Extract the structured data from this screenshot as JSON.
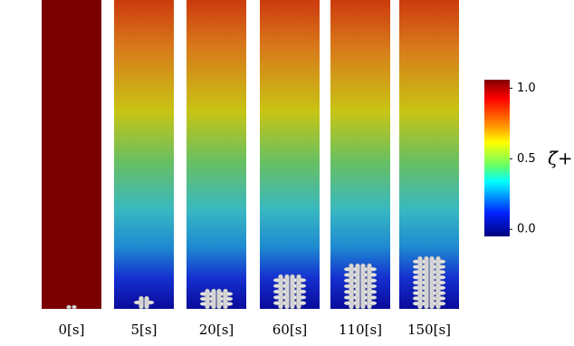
{
  "panels": [
    {
      "label": "0[s]"
    },
    {
      "label": "5[s]"
    },
    {
      "label": "20[s]"
    },
    {
      "label": "60[s]"
    },
    {
      "label": "110[s]"
    },
    {
      "label": "150[s]"
    }
  ],
  "colorbar": {
    "label": "ζ̃+",
    "lim": [
      -0.05,
      1.06
    ],
    "ticks": [
      {
        "value": 1,
        "label": "1.0"
      },
      {
        "value": 0.5,
        "label": "0.5"
      },
      {
        "value": 0,
        "label": "0.0"
      }
    ]
  }
}
